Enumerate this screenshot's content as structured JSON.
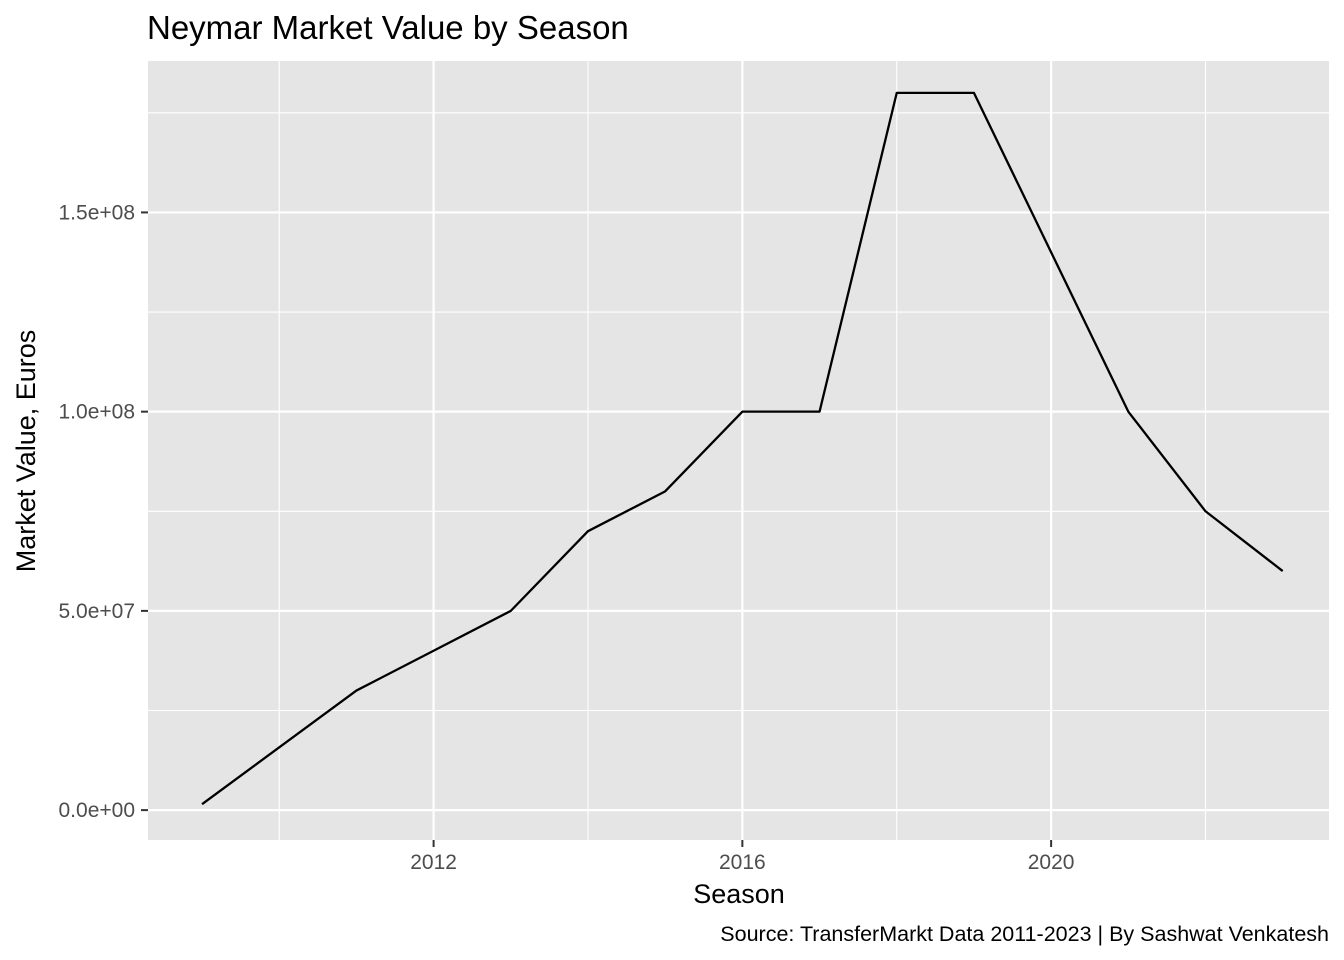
{
  "chart_data": {
    "type": "line",
    "title": "Neymar Market Value by Season",
    "xlabel": "Season",
    "ylabel": "Market Value, Euros",
    "caption": "Source: TransferMarkt Data 2011-2023 | By Sashwat Venkatesh",
    "x_ticks": [
      2012,
      2016,
      2020
    ],
    "x_tick_labels": [
      "2012",
      "2016",
      "2020"
    ],
    "x_minor_ticks": [
      2010,
      2014,
      2018,
      2022
    ],
    "y_ticks": [
      0,
      50000000,
      100000000,
      150000000
    ],
    "y_tick_labels": [
      "0.0e+00",
      "5.0e+07",
      "1.0e+08",
      "1.5e+08"
    ],
    "y_minor_ticks": [
      25000000,
      75000000,
      125000000,
      175000000
    ],
    "xlim": [
      2008.3,
      2023.6
    ],
    "ylim": [
      -7500000,
      188000000
    ],
    "grid": true,
    "series": [
      {
        "x": [
          2009,
          2011,
          2012,
          2013,
          2014,
          2015,
          2016,
          2017,
          2018,
          2019,
          2020,
          2021,
          2022,
          2023
        ],
        "values": [
          1500000,
          30000000,
          40000000,
          50000000,
          70000000,
          80000000,
          100000000,
          100000000,
          180000000,
          180000000,
          140000000,
          100000000,
          75000000,
          60000000
        ],
        "color": "#000000"
      }
    ],
    "panel_background": "#e5e5e5",
    "grid_color": "#ffffff"
  }
}
